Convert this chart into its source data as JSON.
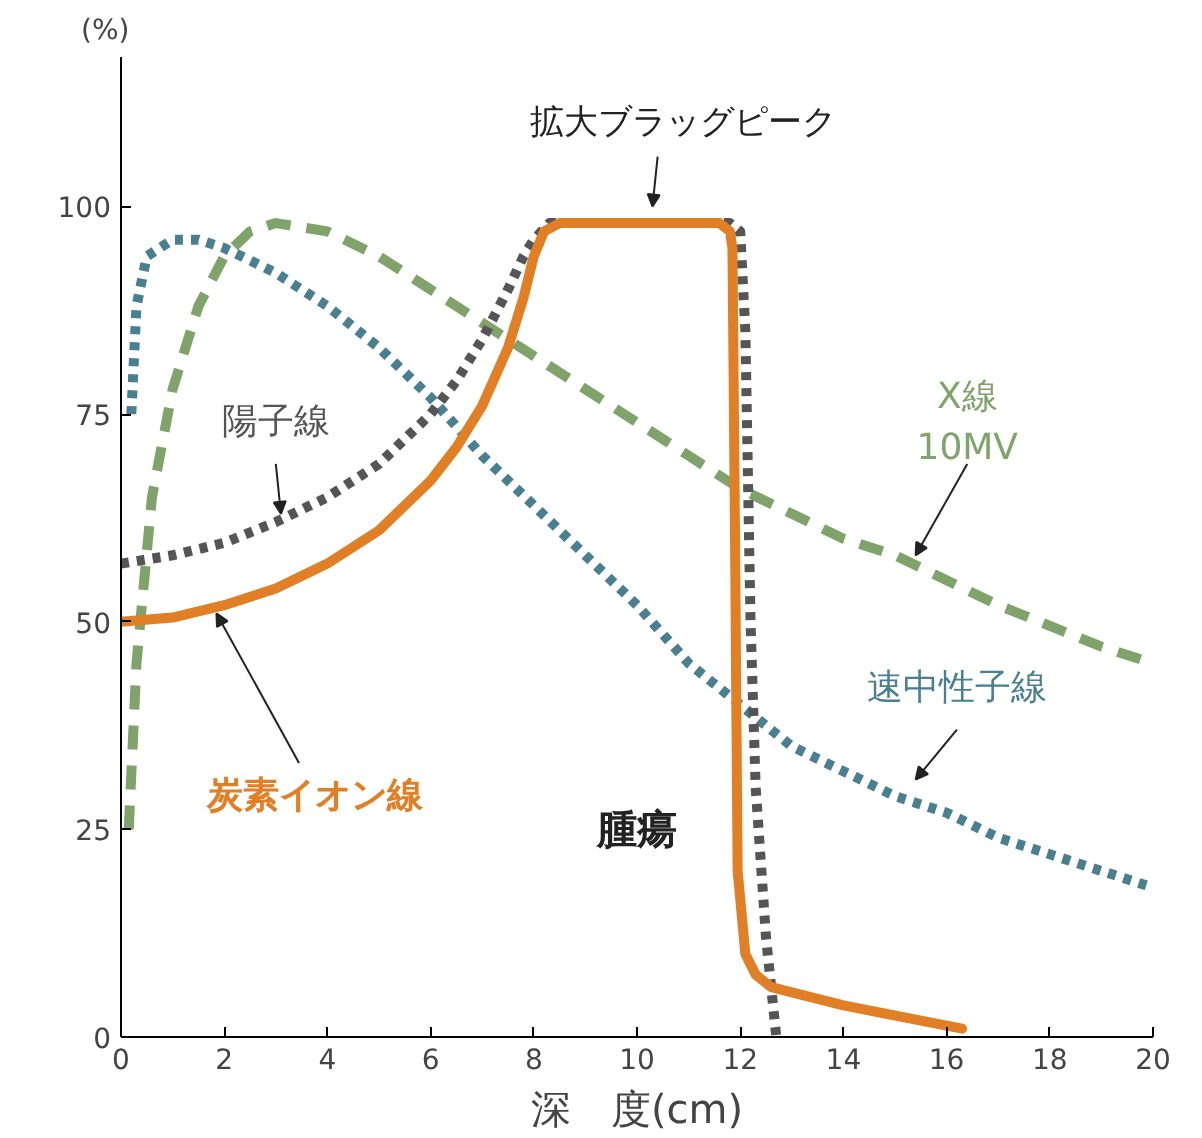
{
  "chart_data": {
    "type": "line",
    "xlabel": "深　度(cm)",
    "ylabel": "(%)",
    "xlim": [
      0,
      20
    ],
    "ylim": [
      0,
      118
    ],
    "xticks": [
      0,
      2,
      4,
      6,
      8,
      10,
      12,
      14,
      16,
      18,
      20
    ],
    "yticks": [
      0,
      25,
      50,
      75,
      100
    ],
    "grid": false,
    "marker": "none",
    "series": [
      {
        "name": "X線\n10MV",
        "color": "#7fa36a",
        "line_style": "dashed",
        "x": [
          0.15,
          0.3,
          0.6,
          1,
          1.5,
          2,
          2.5,
          3,
          4,
          5,
          6,
          7,
          8,
          9,
          10,
          11,
          12,
          13,
          14,
          15,
          16,
          17,
          18,
          19,
          20
        ],
        "values": [
          25,
          45,
          65,
          78,
          88,
          94,
          97,
          98,
          97,
          94,
          90,
          86,
          82,
          78,
          74,
          70,
          66,
          63,
          60,
          58,
          55,
          52,
          49.5,
          47,
          45
        ]
      },
      {
        "name": "速中性子線",
        "color": "#4a7f90",
        "line_style": "dotted",
        "x": [
          0.2,
          0.3,
          0.5,
          1,
          1.5,
          2,
          3,
          4,
          5,
          6,
          7,
          8,
          9,
          10,
          11,
          12,
          13,
          14,
          15,
          16,
          17,
          18,
          19,
          20
        ],
        "values": [
          75,
          88,
          94,
          96,
          96,
          95,
          92,
          88,
          83,
          77,
          70,
          64,
          58,
          52,
          45,
          40,
          35,
          32,
          29,
          27,
          24,
          22,
          20,
          18
        ]
      },
      {
        "name": "陽子線",
        "color": "#555555",
        "line_style": "dotted",
        "x": [
          0,
          1,
          2,
          3,
          4,
          5,
          6,
          6.5,
          7,
          7.5,
          7.8,
          8,
          8.3,
          11.8,
          12,
          12.1,
          12.2,
          12.3,
          12.5,
          12.7
        ],
        "values": [
          57,
          58,
          59.5,
          62,
          65,
          69,
          75,
          79,
          84,
          90,
          94,
          96,
          98,
          98,
          97,
          85,
          50,
          30,
          12,
          0
        ]
      },
      {
        "name": "炭素イオン線",
        "color": "#e07f26",
        "line_style": "solid",
        "x": [
          0,
          1,
          2,
          3,
          4,
          5,
          6,
          6.5,
          7,
          7.5,
          7.8,
          8,
          8.2,
          8.5,
          11.6,
          11.8,
          11.85,
          11.9,
          11.95,
          12.1,
          12.3,
          12.6,
          14,
          16.3
        ],
        "values": [
          50,
          50.5,
          52,
          54,
          57,
          61,
          67,
          71,
          76,
          83,
          89,
          94,
          97,
          98,
          98,
          97,
          95,
          60,
          20,
          10,
          7.5,
          6,
          3.8,
          1
        ]
      }
    ],
    "annotations": [
      "拡大ブラッグピーク",
      "腫瘍"
    ]
  }
}
